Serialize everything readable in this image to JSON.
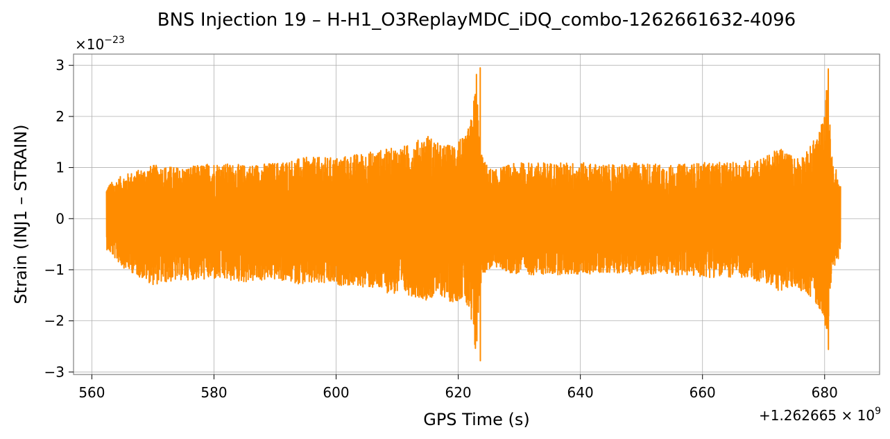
{
  "chart_data": {
    "type": "line",
    "title": "BNS Injection 19 – H-H1_O3ReplayMDC_iDQ_combo-1262661632-4096",
    "xlabel": "GPS Time (s)",
    "ylabel": "Strain (INJ1 – STRAIN)",
    "x_offset_label": "+1.262665 × 10",
    "x_offset_exp": "9",
    "y_scale_label": "×10",
    "y_scale_exp": "−23",
    "xlim": [
      557,
      689
    ],
    "ylim": [
      -3.05,
      3.22
    ],
    "xticks": [
      560,
      580,
      600,
      620,
      640,
      660,
      680
    ],
    "yticks": [
      -3,
      -2,
      -1,
      0,
      1,
      2,
      3
    ],
    "ytick_labels": [
      "−3",
      "−2",
      "−1",
      "0",
      "1",
      "2",
      "3"
    ],
    "grid": true,
    "series": [
      {
        "color": "#ff8c00",
        "x_range": [
          562.4,
          682.6
        ],
        "envelope_x": [
          562.4,
          565,
          570,
          575,
          580,
          585,
          590,
          595,
          600,
          605,
          610,
          612,
          615,
          617,
          619,
          620,
          621,
          622,
          622.5,
          623,
          623.5,
          624,
          625,
          626,
          628,
          630,
          635,
          640,
          645,
          650,
          655,
          660,
          665,
          670,
          673,
          675,
          677,
          679,
          680,
          680.5,
          681,
          681.5,
          682,
          682.6
        ],
        "envelope_max": [
          0.65,
          0.85,
          1.05,
          1.0,
          1.1,
          1.05,
          1.1,
          1.2,
          1.2,
          1.3,
          1.4,
          1.45,
          1.65,
          1.45,
          1.45,
          1.65,
          1.55,
          1.9,
          2.3,
          2.95,
          1.4,
          1.2,
          1.0,
          0.95,
          1.05,
          1.1,
          1.1,
          1.1,
          1.05,
          1.1,
          1.05,
          1.1,
          1.1,
          1.2,
          1.4,
          1.2,
          1.3,
          1.7,
          2.05,
          2.9,
          1.5,
          1.0,
          0.95,
          0.65
        ],
        "envelope_min": [
          -0.6,
          -0.95,
          -1.3,
          -1.2,
          -1.2,
          -1.25,
          -1.2,
          -1.3,
          -1.3,
          -1.35,
          -1.5,
          -1.5,
          -1.6,
          -1.5,
          -1.65,
          -1.6,
          -1.55,
          -2.1,
          -2.45,
          -2.78,
          -1.4,
          -1.1,
          -1.0,
          -0.95,
          -1.05,
          -1.1,
          -1.1,
          -1.1,
          -1.05,
          -1.1,
          -1.1,
          -1.15,
          -1.15,
          -1.25,
          -1.45,
          -1.35,
          -1.45,
          -1.75,
          -2.0,
          -2.55,
          -1.3,
          -0.95,
          -0.9,
          -0.6
        ],
        "spikes": [
          {
            "x": 623.6,
            "max": 2.95,
            "min": -2.78
          },
          {
            "x": 680.6,
            "max": 2.93,
            "min": -2.56
          }
        ]
      }
    ]
  }
}
